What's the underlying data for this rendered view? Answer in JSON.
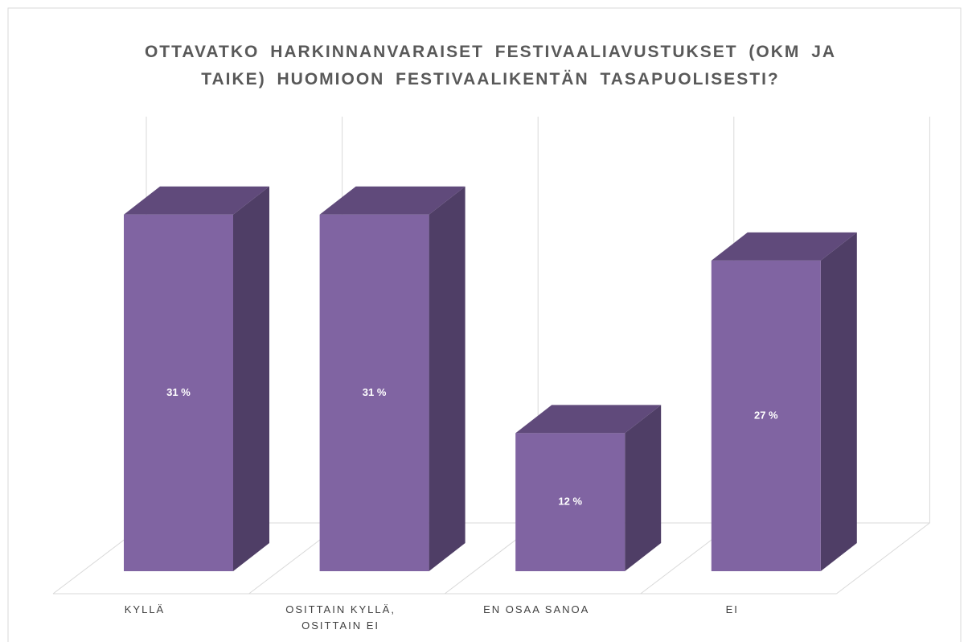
{
  "chart_data": {
    "type": "bar3d",
    "title": "OTTAVATKO HARKINNANVARAISET FESTIVAALIAVUSTUKSET (OKM JA TAIKE) HUOMIOON FESTIVAALIKENTÄN TASAPUOLISESTI?",
    "categories": [
      "KYLLÄ",
      "OSITTAIN KYLLÄ, OSITTAIN EI",
      "EN OSAA SANOA",
      "EI"
    ],
    "values": [
      31,
      31,
      12,
      27
    ],
    "value_labels": [
      "31 %",
      "31 %",
      "12 %",
      "27 %"
    ],
    "color": "#8064a2"
  }
}
